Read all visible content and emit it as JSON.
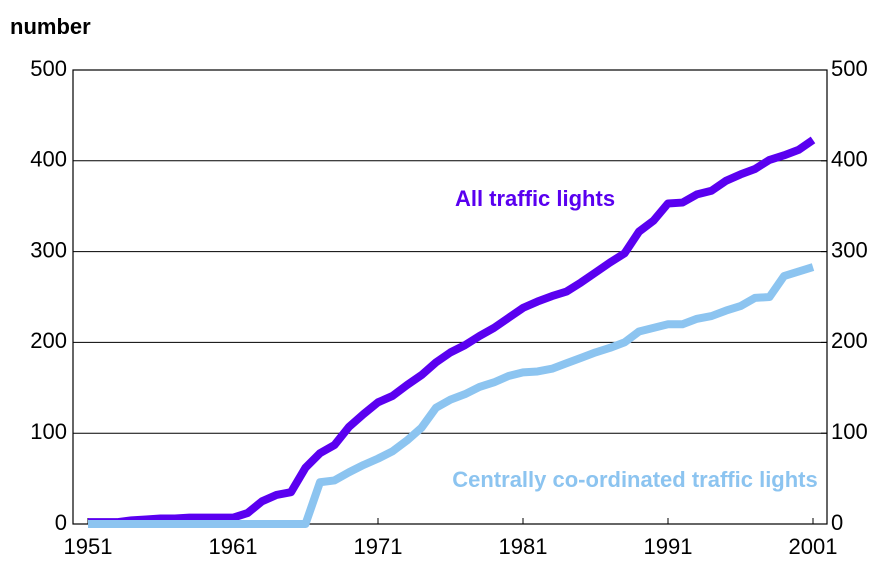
{
  "chart_data": {
    "type": "line",
    "title": "number",
    "x": [
      1951,
      1952,
      1953,
      1954,
      1955,
      1956,
      1957,
      1958,
      1959,
      1960,
      1961,
      1962,
      1963,
      1964,
      1965,
      1966,
      1967,
      1968,
      1969,
      1970,
      1971,
      1972,
      1973,
      1974,
      1975,
      1976,
      1977,
      1978,
      1979,
      1980,
      1981,
      1982,
      1983,
      1984,
      1985,
      1986,
      1987,
      1988,
      1989,
      1990,
      1991,
      1992,
      1993,
      1994,
      1995,
      1996,
      1997,
      1998,
      1999,
      2000,
      2001
    ],
    "series": [
      {
        "name": "All traffic lights",
        "color": "#5a00f0",
        "values": [
          2,
          2,
          2,
          4,
          5,
          6,
          6,
          7,
          7,
          7,
          7,
          12,
          25,
          32,
          35,
          62,
          78,
          87,
          107,
          121,
          134,
          141,
          153,
          164,
          178,
          189,
          197,
          207,
          216,
          227,
          238,
          245,
          251,
          256,
          266,
          277,
          288,
          298,
          322,
          334,
          353,
          354,
          363,
          367,
          378,
          385,
          391,
          401,
          406,
          412,
          423
        ]
      },
      {
        "name": "Centrally co-ordinated traffic lights",
        "color": "#8cc4f0",
        "values": [
          0,
          0,
          0,
          0,
          0,
          0,
          0,
          0,
          0,
          0,
          0,
          0,
          0,
          0,
          0,
          0,
          46,
          48,
          57,
          65,
          72,
          80,
          92,
          106,
          128,
          137,
          143,
          151,
          156,
          163,
          167,
          168,
          171,
          177,
          183,
          189,
          194,
          200,
          212,
          216,
          220,
          220,
          226,
          229,
          235,
          240,
          249,
          250,
          273,
          278,
          283
        ]
      }
    ],
    "xlim": [
      1951,
      2001
    ],
    "xticks": [
      1951,
      1961,
      1971,
      1981,
      1991,
      2001
    ],
    "ylim": [
      0,
      500
    ],
    "yticks": [
      0,
      100,
      200,
      300,
      400,
      500
    ],
    "y2lim": [
      0,
      500
    ],
    "y2ticks": [
      0,
      100,
      200,
      300,
      400,
      500
    ],
    "grid": true
  }
}
